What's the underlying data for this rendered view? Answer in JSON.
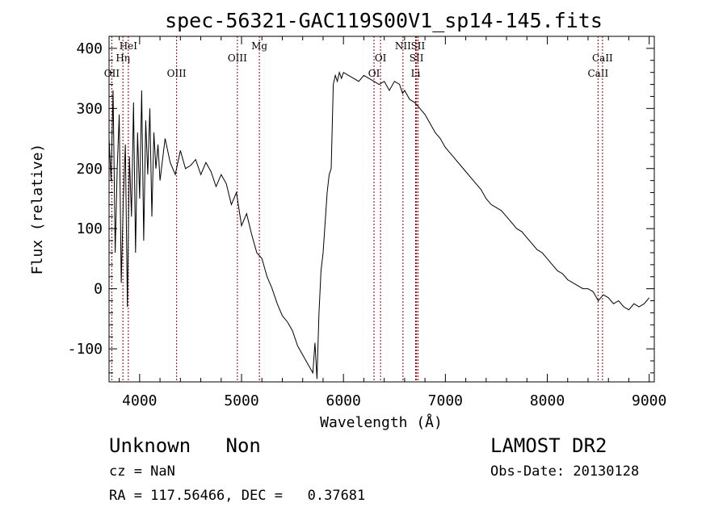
{
  "chart_data": {
    "type": "line",
    "title": "spec-56321-GAC119S00V1_sp14-145.fits",
    "xlabel": "Wavelength (Å)",
    "ylabel": "Flux (relative)",
    "xlim": [
      3700,
      9050
    ],
    "ylim": [
      -155,
      420
    ],
    "xticks": [
      4000,
      5000,
      6000,
      7000,
      8000,
      9000
    ],
    "yticks": [
      -100,
      0,
      100,
      200,
      300,
      400
    ],
    "grid": false,
    "series_color": "#000000",
    "line_color": "#8b0000",
    "spectrum": {
      "x": [
        3700,
        3720,
        3740,
        3760,
        3780,
        3800,
        3820,
        3840,
        3860,
        3880,
        3900,
        3920,
        3940,
        3960,
        3980,
        4000,
        4020,
        4040,
        4060,
        4080,
        4100,
        4120,
        4140,
        4160,
        4180,
        4200,
        4250,
        4300,
        4350,
        4400,
        4450,
        4500,
        4550,
        4600,
        4650,
        4700,
        4750,
        4800,
        4850,
        4900,
        4950,
        5000,
        5050,
        5100,
        5150,
        5200,
        5250,
        5300,
        5350,
        5400,
        5450,
        5500,
        5550,
        5600,
        5650,
        5700,
        5720,
        5740,
        5760,
        5780,
        5800,
        5820,
        5840,
        5860,
        5880,
        5900,
        5920,
        5940,
        5960,
        5980,
        6000,
        6050,
        6100,
        6150,
        6200,
        6250,
        6300,
        6350,
        6400,
        6450,
        6500,
        6550,
        6580,
        6600,
        6650,
        6700,
        6750,
        6800,
        6850,
        6900,
        6950,
        7000,
        7050,
        7100,
        7150,
        7200,
        7250,
        7300,
        7350,
        7400,
        7450,
        7500,
        7550,
        7600,
        7650,
        7700,
        7750,
        7800,
        7850,
        7900,
        7950,
        8000,
        8050,
        8100,
        8150,
        8200,
        8250,
        8300,
        8350,
        8400,
        8450,
        8500,
        8550,
        8600,
        8650,
        8700,
        8750,
        8800,
        8850,
        8900,
        8950,
        9000
      ],
      "y": [
        250,
        180,
        330,
        60,
        200,
        290,
        10,
        150,
        240,
        -30,
        220,
        120,
        310,
        60,
        260,
        150,
        330,
        80,
        280,
        190,
        300,
        120,
        260,
        200,
        240,
        180,
        250,
        210,
        190,
        230,
        200,
        205,
        215,
        190,
        210,
        195,
        170,
        190,
        175,
        140,
        160,
        105,
        125,
        90,
        60,
        50,
        20,
        0,
        -25,
        -45,
        -55,
        -70,
        -95,
        -110,
        -125,
        -140,
        -90,
        -150,
        -40,
        30,
        60,
        110,
        160,
        190,
        200,
        340,
        355,
        345,
        360,
        350,
        360,
        355,
        350,
        345,
        355,
        350,
        345,
        340,
        345,
        330,
        345,
        340,
        325,
        330,
        315,
        310,
        300,
        290,
        275,
        260,
        250,
        235,
        225,
        215,
        205,
        195,
        185,
        175,
        165,
        150,
        140,
        135,
        130,
        120,
        110,
        100,
        95,
        85,
        75,
        65,
        60,
        50,
        40,
        30,
        25,
        15,
        10,
        5,
        0,
        0,
        -5,
        -20,
        -10,
        -15,
        -25,
        -20,
        -30,
        -35,
        -25,
        -30,
        -25,
        -15
      ]
    },
    "lines": [
      {
        "label": "OII",
        "x": 3727,
        "row": 3
      },
      {
        "label": "Hη",
        "x": 3836,
        "row": 2
      },
      {
        "label": "HeI",
        "x": 3889,
        "row": 1
      },
      {
        "label": "OIII",
        "x": 4363,
        "row": 3
      },
      {
        "label": "OIII",
        "x": 4959,
        "row": 2
      },
      {
        "label": "Mg",
        "x": 5175,
        "row": 1
      },
      {
        "label": "OI",
        "x": 6300,
        "row": 3
      },
      {
        "label": "OI",
        "x": 6364,
        "row": 2
      },
      {
        "label": "NII",
        "x": 6584,
        "row": 1
      },
      {
        "label": "Li",
        "x": 6708,
        "row": 3
      },
      {
        "label": "SII",
        "x": 6717,
        "row": 2
      },
      {
        "label": "SII",
        "x": 6731,
        "row": 1
      },
      {
        "label": "CaII",
        "x": 8498,
        "row": 3
      },
      {
        "label": "CaII",
        "x": 8542,
        "row": 2
      }
    ]
  },
  "info": {
    "class": "Unknown   Non",
    "survey": "LAMOST DR2",
    "cz": "cz = NaN",
    "obs_date": "Obs-Date: 20130128",
    "coords": "RA = 117.56466, DEC =   0.37681"
  }
}
